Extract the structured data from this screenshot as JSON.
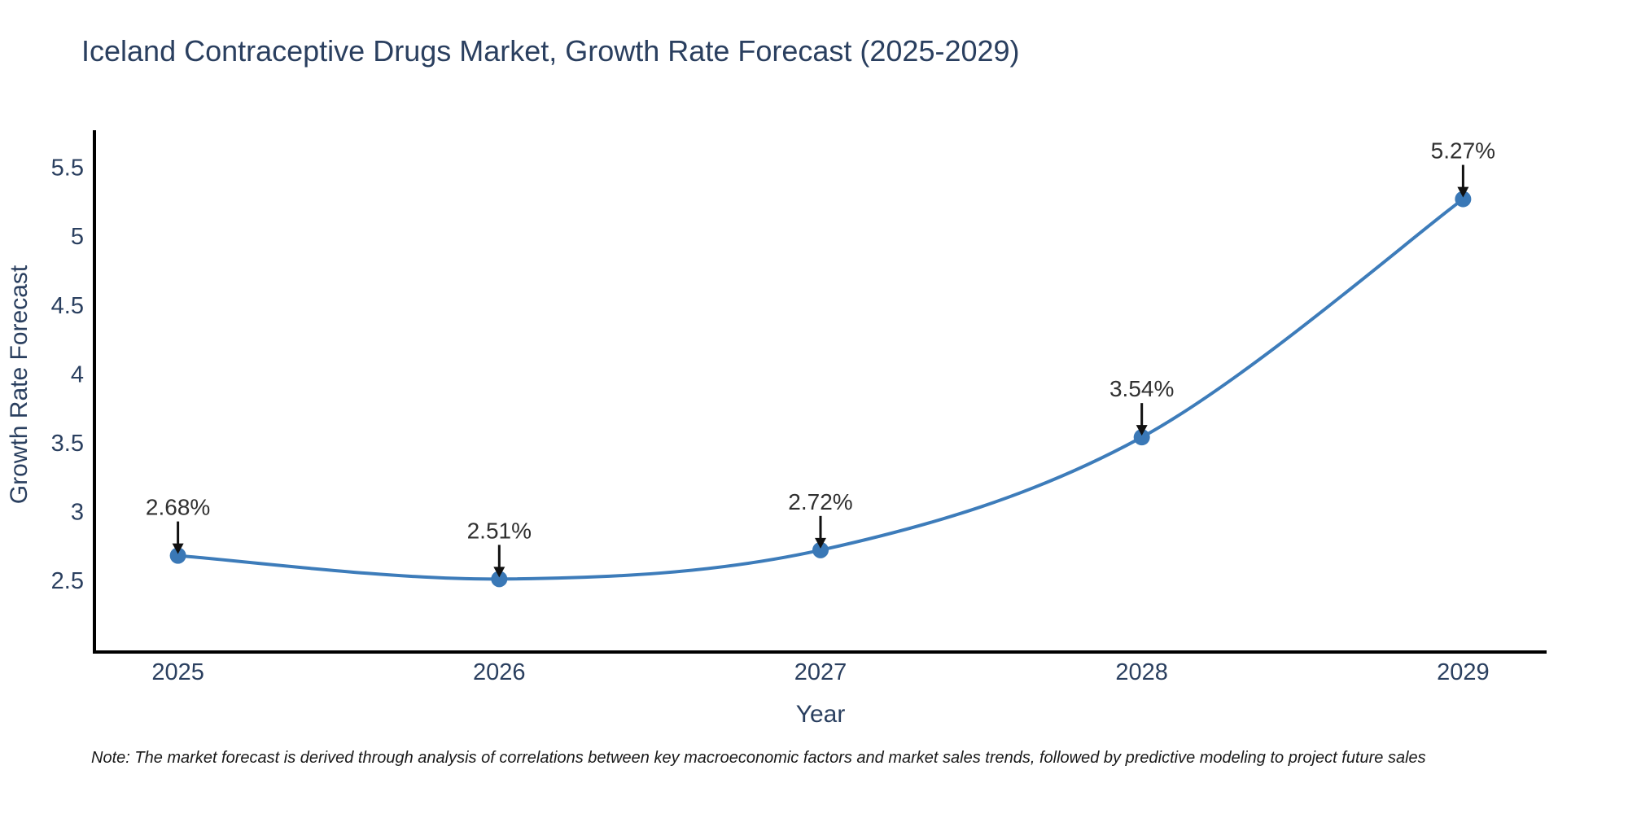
{
  "title": "Iceland Contraceptive Drugs Market, Growth Rate Forecast (2025-2029)",
  "note": "Note: The market forecast is derived through analysis of correlations between key macroeconomic factors and market sales trends, followed by predictive modeling to project future sales",
  "chart_data": {
    "type": "line",
    "title": "Iceland Contraceptive Drugs Market, Growth Rate Forecast (2025-2029)",
    "xlabel": "Year",
    "ylabel": "Growth Rate Forecast",
    "x": [
      2025,
      2026,
      2027,
      2028,
      2029
    ],
    "y": [
      2.68,
      2.51,
      2.72,
      3.54,
      5.27
    ],
    "point_labels": [
      "2.68%",
      "2.51%",
      "2.72%",
      "3.54%",
      "5.27%"
    ],
    "xticks": [
      2025,
      2026,
      2027,
      2028,
      2029
    ],
    "yticks": [
      2.5,
      3,
      3.5,
      4,
      4.5,
      5,
      5.5
    ],
    "xlim": [
      2024.74,
      2029.26
    ],
    "ylim": [
      1.98,
      5.77
    ],
    "line_shape": "spline",
    "grid": false,
    "legend": false,
    "line_color": "#3d7cba",
    "marker_color": "#3a78b6",
    "axis_color": "#000000",
    "tick_color": "#2a3f5f",
    "axis_title_color": "#2a3f5f",
    "annotation_text_color": "#303030",
    "annotation_arrow_color": "#111111"
  }
}
